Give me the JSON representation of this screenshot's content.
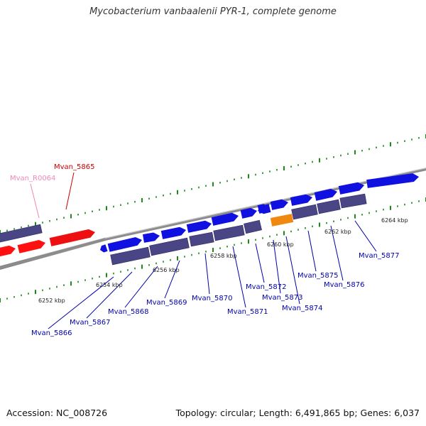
{
  "title": "Mycobacterium vanbaalenii PYR-1, complete genome",
  "footer": {
    "accession": "Accession: NC_008726",
    "summary": "Topology: circular; Length: 6,491,865 bp; Genes: 6,037"
  },
  "colors": {
    "forward_gene": "#1010e0",
    "cds_box": "#4a4585",
    "selected_gene": "#ee1010",
    "rna_gene": "#ff1010",
    "pseudo_orange": "#f08810",
    "backbone": "#8c8c8c",
    "tick": "#1a8a1a",
    "label_blue": "#0000aa",
    "label_red": "#cc0000",
    "label_pink": "#ee88bb"
  },
  "scale_labels": [
    "6252 kbp",
    "6254 kbp",
    "6256 kbp",
    "6258 kbp",
    "6260 kbp",
    "6262 kbp",
    "6264 kbp"
  ],
  "gene_labels": [
    {
      "name": "Mvan_5865",
      "color": "red"
    },
    {
      "name": "Mvan_R0064",
      "color": "pink"
    },
    {
      "name": "Mvan_5866",
      "color": "blue"
    },
    {
      "name": "Mvan_5867",
      "color": "blue"
    },
    {
      "name": "Mvan_5868",
      "color": "blue"
    },
    {
      "name": "Mvan_5869",
      "color": "blue"
    },
    {
      "name": "Mvan_5870",
      "color": "blue"
    },
    {
      "name": "Mvan_5871",
      "color": "blue"
    },
    {
      "name": "Mvan_5872",
      "color": "blue"
    },
    {
      "name": "Mvan_5873",
      "color": "blue"
    },
    {
      "name": "Mvan_5874",
      "color": "blue"
    },
    {
      "name": "Mvan_5875",
      "color": "blue"
    },
    {
      "name": "Mvan_5876",
      "color": "blue"
    },
    {
      "name": "Mvan_5877",
      "color": "blue"
    }
  ]
}
